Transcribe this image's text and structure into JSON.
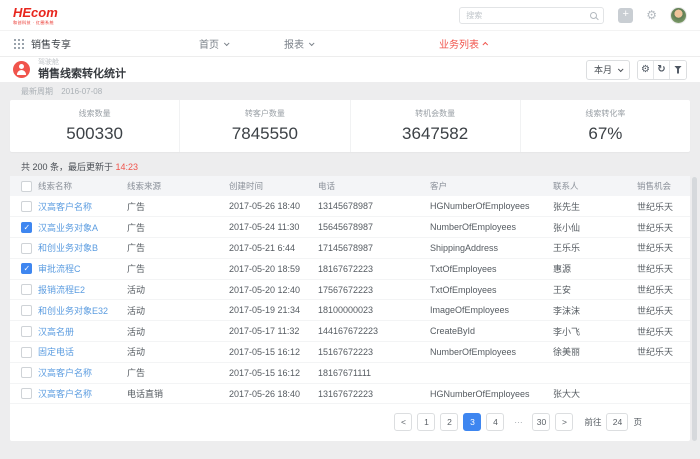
{
  "colors": {
    "accent_red": "#f0544c",
    "logo_red": "#e8251d",
    "link_blue": "#5b9ce0",
    "selection_blue": "#3e86f0",
    "page_bg": "#ededee"
  },
  "topbar": {
    "logo_text": "HEcom",
    "logo_tagline": "和创科技 · 红圈系统",
    "search_placeholder": "搜索"
  },
  "nav": {
    "workspace": "销售专享",
    "items": [
      {
        "label": "首页",
        "state": "collapsed",
        "active": false
      },
      {
        "label": "报表",
        "state": "collapsed",
        "active": false
      },
      {
        "label": "业务列表",
        "state": "expanded",
        "active": true
      }
    ]
  },
  "page_header": {
    "category": "驾驶舱",
    "title": "销售线索转化统计",
    "period_button": "本月",
    "meta_label": "最新周期",
    "meta_date": "2016-07-08"
  },
  "stats": {
    "items": [
      {
        "label": "线索数量",
        "value": "500330"
      },
      {
        "label": "转客户数量",
        "value": "7845550"
      },
      {
        "label": "转机会数量",
        "value": "3647582"
      },
      {
        "label": "线索转化率",
        "value": "67%"
      }
    ]
  },
  "table": {
    "summary_prefix": "共 200 条，最后更新于 ",
    "summary_time": "14:23",
    "columns": [
      "线索名称",
      "线索来源",
      "创建时间",
      "电话",
      "客户",
      "联系人",
      "销售机会"
    ],
    "rows": [
      {
        "checked": false,
        "name": "汉高客户名称",
        "source": "广告",
        "created": "2017-05-26 18:40",
        "phone": "13145678987",
        "customer": "HGNumberOfEmployees",
        "contact": "张先生",
        "opportunity": "世纪乐天"
      },
      {
        "checked": true,
        "name": "汉高业务对象A",
        "source": "广告",
        "created": "2017-05-24 11:30",
        "phone": "15645678987",
        "customer": "NumberOfEmployees",
        "contact": "张小仙",
        "opportunity": "世纪乐天"
      },
      {
        "checked": false,
        "name": "和创业务对象B",
        "source": "广告",
        "created": "2017-05-21 6:44",
        "phone": "17145678987",
        "customer": "ShippingAddress",
        "contact": "王乐乐",
        "opportunity": "世纪乐天"
      },
      {
        "checked": true,
        "name": "审批流程C",
        "source": "广告",
        "created": "2017-05-20 18:59",
        "phone": "18167672223",
        "customer": "TxtOfEmployees",
        "contact": "惠源",
        "opportunity": "世纪乐天"
      },
      {
        "checked": false,
        "name": "报销流程E2",
        "source": "活动",
        "created": "2017-05-20 12:40",
        "phone": "17567672223",
        "customer": "TxtOfEmployees",
        "contact": "王安",
        "opportunity": "世纪乐天"
      },
      {
        "checked": false,
        "name": "和创业务对象E32",
        "source": "活动",
        "created": "2017-05-19 21:34",
        "phone": "18100000023",
        "customer": "ImageOfEmployees",
        "contact": "李沫沫",
        "opportunity": "世纪乐天"
      },
      {
        "checked": false,
        "name": "汉高名册",
        "source": "活动",
        "created": "2017-05-17 11:32",
        "phone": "144167672223",
        "customer": "CreateById",
        "contact": "李小飞",
        "opportunity": "世纪乐天"
      },
      {
        "checked": false,
        "name": "固定电话",
        "source": "活动",
        "created": "2017-05-15 16:12",
        "phone": "15167672223",
        "customer": "NumberOfEmployees",
        "contact": "徐美丽",
        "opportunity": "世纪乐天"
      },
      {
        "checked": false,
        "name": "汉高客户名称",
        "source": "广告",
        "created": "2017-05-15 16:12",
        "phone": "18167671111",
        "customer": "",
        "contact": "",
        "opportunity": ""
      },
      {
        "checked": false,
        "name": "汉高客户名称",
        "source": "电话直销",
        "created": "2017-05-26 18:40",
        "phone": "13167672223",
        "customer": "HGNumberOfEmployees",
        "contact": "张大大",
        "opportunity": ""
      }
    ]
  },
  "pagination": {
    "items": [
      {
        "label": "<",
        "type": "prev"
      },
      {
        "label": "1",
        "type": "page"
      },
      {
        "label": "2",
        "type": "page"
      },
      {
        "label": "3",
        "type": "page",
        "active": true
      },
      {
        "label": "4",
        "type": "page"
      },
      {
        "label": "···",
        "type": "ellipsis"
      },
      {
        "label": "30",
        "type": "page"
      },
      {
        "label": ">",
        "type": "next"
      }
    ],
    "jump_label": "前往",
    "jump_value": "24",
    "jump_unit": "页"
  }
}
